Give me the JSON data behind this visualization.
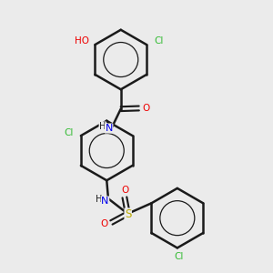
{
  "bg_color": "#ebebeb",
  "bond_color": "#1a1a1a",
  "bond_width": 1.8,
  "atom_colors": {
    "C": "#1a1a1a",
    "N": "#0000ee",
    "O": "#ee0000",
    "S": "#bbaa00",
    "Cl": "#33bb33",
    "H": "#1a1a1a"
  },
  "font_size": 7.5,
  "figsize": [
    3.0,
    3.0
  ],
  "dpi": 100
}
